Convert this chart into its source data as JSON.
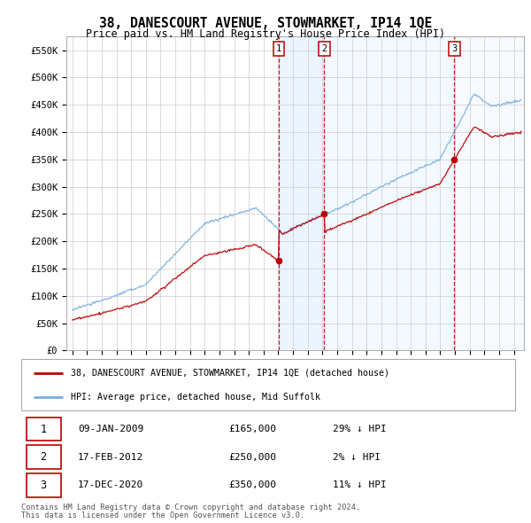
{
  "title": "38, DANESCOURT AVENUE, STOWMARKET, IP14 1QE",
  "subtitle": "Price paid vs. HM Land Registry's House Price Index (HPI)",
  "legend_line1": "38, DANESCOURT AVENUE, STOWMARKET, IP14 1QE (detached house)",
  "legend_line2": "HPI: Average price, detached house, Mid Suffolk",
  "footer1": "Contains HM Land Registry data © Crown copyright and database right 2024.",
  "footer2": "This data is licensed under the Open Government Licence v3.0.",
  "transactions": [
    {
      "num": 1,
      "date": "09-JAN-2009",
      "price": "£165,000",
      "pct": "29% ↓ HPI",
      "year": 2009.03
    },
    {
      "num": 2,
      "date": "17-FEB-2012",
      "price": "£250,000",
      "pct": "2% ↓ HPI",
      "year": 2012.12
    },
    {
      "num": 3,
      "date": "17-DEC-2020",
      "price": "£350,000",
      "pct": "11% ↓ HPI",
      "year": 2020.96
    }
  ],
  "price_color": "#bb0000",
  "hpi_color": "#7aade0",
  "shade_color": "#ddeeff",
  "ylim": [
    0,
    575000
  ],
  "yticks": [
    0,
    50000,
    100000,
    150000,
    200000,
    250000,
    300000,
    350000,
    400000,
    450000,
    500000,
    550000
  ],
  "ytick_labels": [
    "£0",
    "£50K",
    "£100K",
    "£150K",
    "£200K",
    "£250K",
    "£300K",
    "£350K",
    "£400K",
    "£450K",
    "£500K",
    "£550K"
  ],
  "xlim_left": 1994.6,
  "xlim_right": 2025.7
}
